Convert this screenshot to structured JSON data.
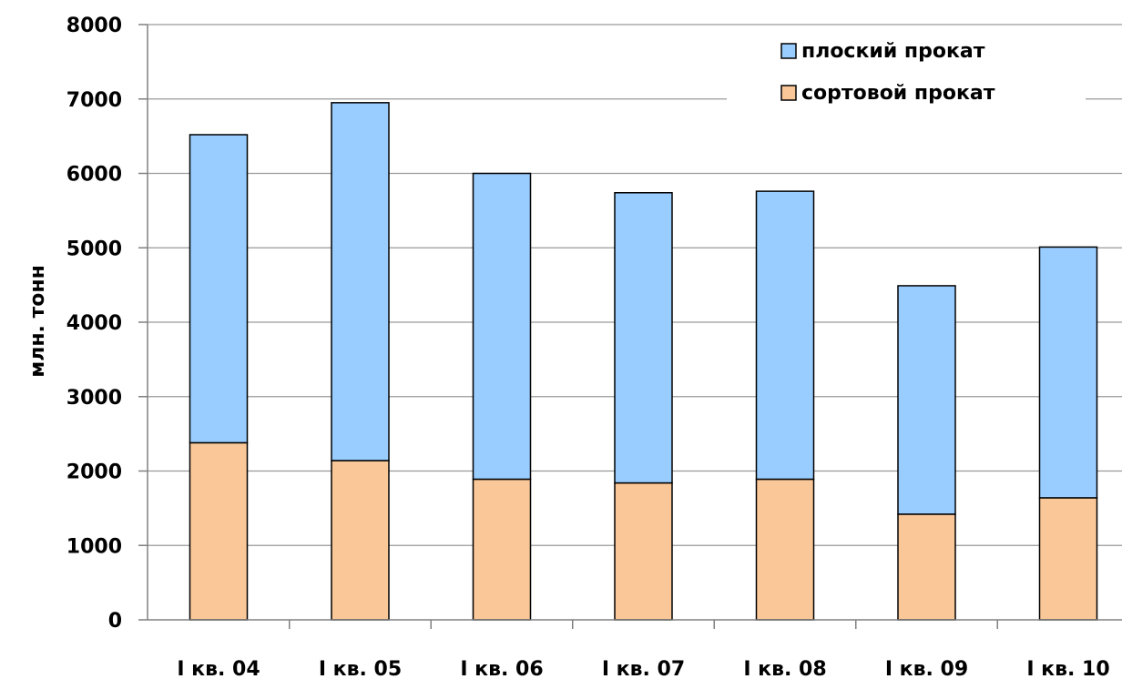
{
  "chart_data": {
    "type": "bar",
    "stacked": true,
    "categories": [
      "I кв. 04",
      "I кв. 05",
      "I кв. 06",
      "I кв. 07",
      "I кв. 08",
      "I кв. 09",
      "I кв. 10"
    ],
    "series": [
      {
        "name": "сортовой прокат",
        "values": [
          2380,
          2140,
          1890,
          1840,
          1890,
          1420,
          1640
        ],
        "color": "#FAC898"
      },
      {
        "name": "плоский прокат",
        "values": [
          4140,
          4810,
          4110,
          3900,
          3870,
          3070,
          3370
        ],
        "color": "#99CCFF"
      }
    ],
    "legend_order": [
      "плоский прокат",
      "сортовой прокат"
    ],
    "ylabel": "млн. тонн",
    "xlabel": "",
    "title": "",
    "ylim": [
      0,
      8000
    ],
    "yticks": [
      0,
      1000,
      2000,
      3000,
      4000,
      5000,
      6000,
      7000,
      8000
    ],
    "grid": true,
    "legend_position": "top-right"
  }
}
